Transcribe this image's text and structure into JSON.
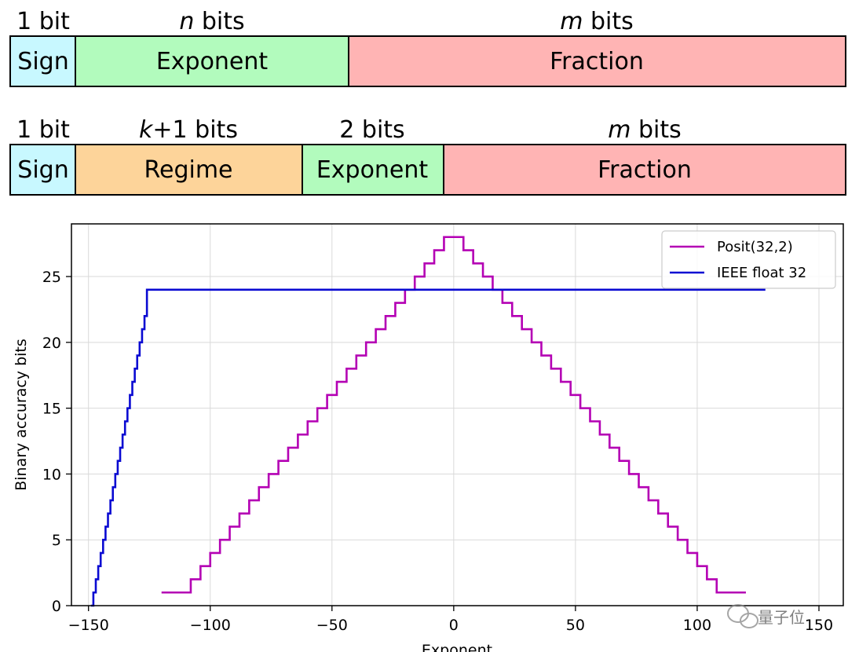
{
  "rows": [
    {
      "fields": [
        {
          "key": "sign",
          "name": "Sign",
          "bits": "1 bit",
          "color": "#c8f8ff"
        },
        {
          "key": "exponent",
          "name": "Exponent",
          "bits": "n bits",
          "color": "#b2fbbd"
        },
        {
          "key": "fraction",
          "name": "Fraction",
          "bits": "m bits",
          "color": "#ffb4b4"
        }
      ]
    },
    {
      "fields": [
        {
          "key": "sign",
          "name": "Sign",
          "bits": "1 bit",
          "color": "#c8f8ff"
        },
        {
          "key": "regime",
          "name": "Regime",
          "bits": "k+1 bits",
          "color": "#fdd49a"
        },
        {
          "key": "exponent",
          "name": "Exponent",
          "bits": "2 bits",
          "color": "#b2fbbd"
        },
        {
          "key": "fraction",
          "name": "Fraction",
          "bits": "m bits",
          "color": "#ffb4b4"
        }
      ]
    }
  ],
  "chart_data": {
    "type": "line",
    "title": "",
    "xlabel": "Exponent",
    "ylabel": "Binary accuracy bits",
    "xlim": [
      -157,
      160
    ],
    "ylim": [
      0,
      29
    ],
    "xticks": [
      -150,
      -100,
      -50,
      0,
      50,
      100,
      150
    ],
    "xtick_labels": [
      "−150",
      "−100",
      "−50",
      "0",
      "50",
      "100",
      "150"
    ],
    "yticks": [
      0,
      5,
      10,
      15,
      20,
      25
    ],
    "ytick_labels": [
      "0",
      "5",
      "10",
      "15",
      "20",
      "25"
    ],
    "grid": true,
    "legend": "top-right",
    "series": [
      {
        "name": "Posit(32,2)",
        "color": "#b400b4",
        "step": true,
        "x": [
          -120,
          -108,
          -104,
          -100,
          -96,
          -92,
          -88,
          -84,
          -80,
          -76,
          -72,
          -68,
          -64,
          -60,
          -56,
          -52,
          -48,
          -44,
          -40,
          -36,
          -32,
          -28,
          -24,
          -20,
          -16,
          -12,
          -8,
          -4,
          4,
          8,
          12,
          16,
          20,
          24,
          28,
          32,
          36,
          40,
          44,
          48,
          52,
          56,
          60,
          64,
          68,
          72,
          76,
          80,
          84,
          88,
          92,
          96,
          100,
          104,
          108,
          112,
          120
        ],
        "y": [
          1,
          2,
          3,
          4,
          5,
          6,
          7,
          8,
          9,
          10,
          11,
          12,
          13,
          14,
          15,
          16,
          17,
          18,
          19,
          20,
          21,
          22,
          23,
          24,
          25,
          26,
          27,
          28,
          27,
          26,
          25,
          24,
          23,
          22,
          21,
          20,
          19,
          18,
          17,
          16,
          15,
          14,
          13,
          12,
          11,
          10,
          9,
          8,
          7,
          6,
          5,
          4,
          3,
          2,
          1,
          1,
          1
        ]
      },
      {
        "name": "IEEE float 32",
        "color": "#0a0ad2",
        "step": true,
        "x": [
          -149,
          -148,
          -147,
          -146,
          -145,
          -144,
          -143,
          -142,
          -141,
          -140,
          -139,
          -138,
          -137,
          -136,
          -135,
          -134,
          -133,
          -132,
          -131,
          -130,
          -129,
          -128,
          -127,
          -126,
          128
        ],
        "y": [
          0,
          1,
          2,
          3,
          4,
          5,
          6,
          7,
          8,
          9,
          10,
          11,
          12,
          13,
          14,
          15,
          16,
          17,
          18,
          19,
          20,
          21,
          22,
          24,
          24
        ]
      }
    ]
  },
  "watermark": {
    "text": "量子位",
    "icon": "wechat-icon"
  }
}
